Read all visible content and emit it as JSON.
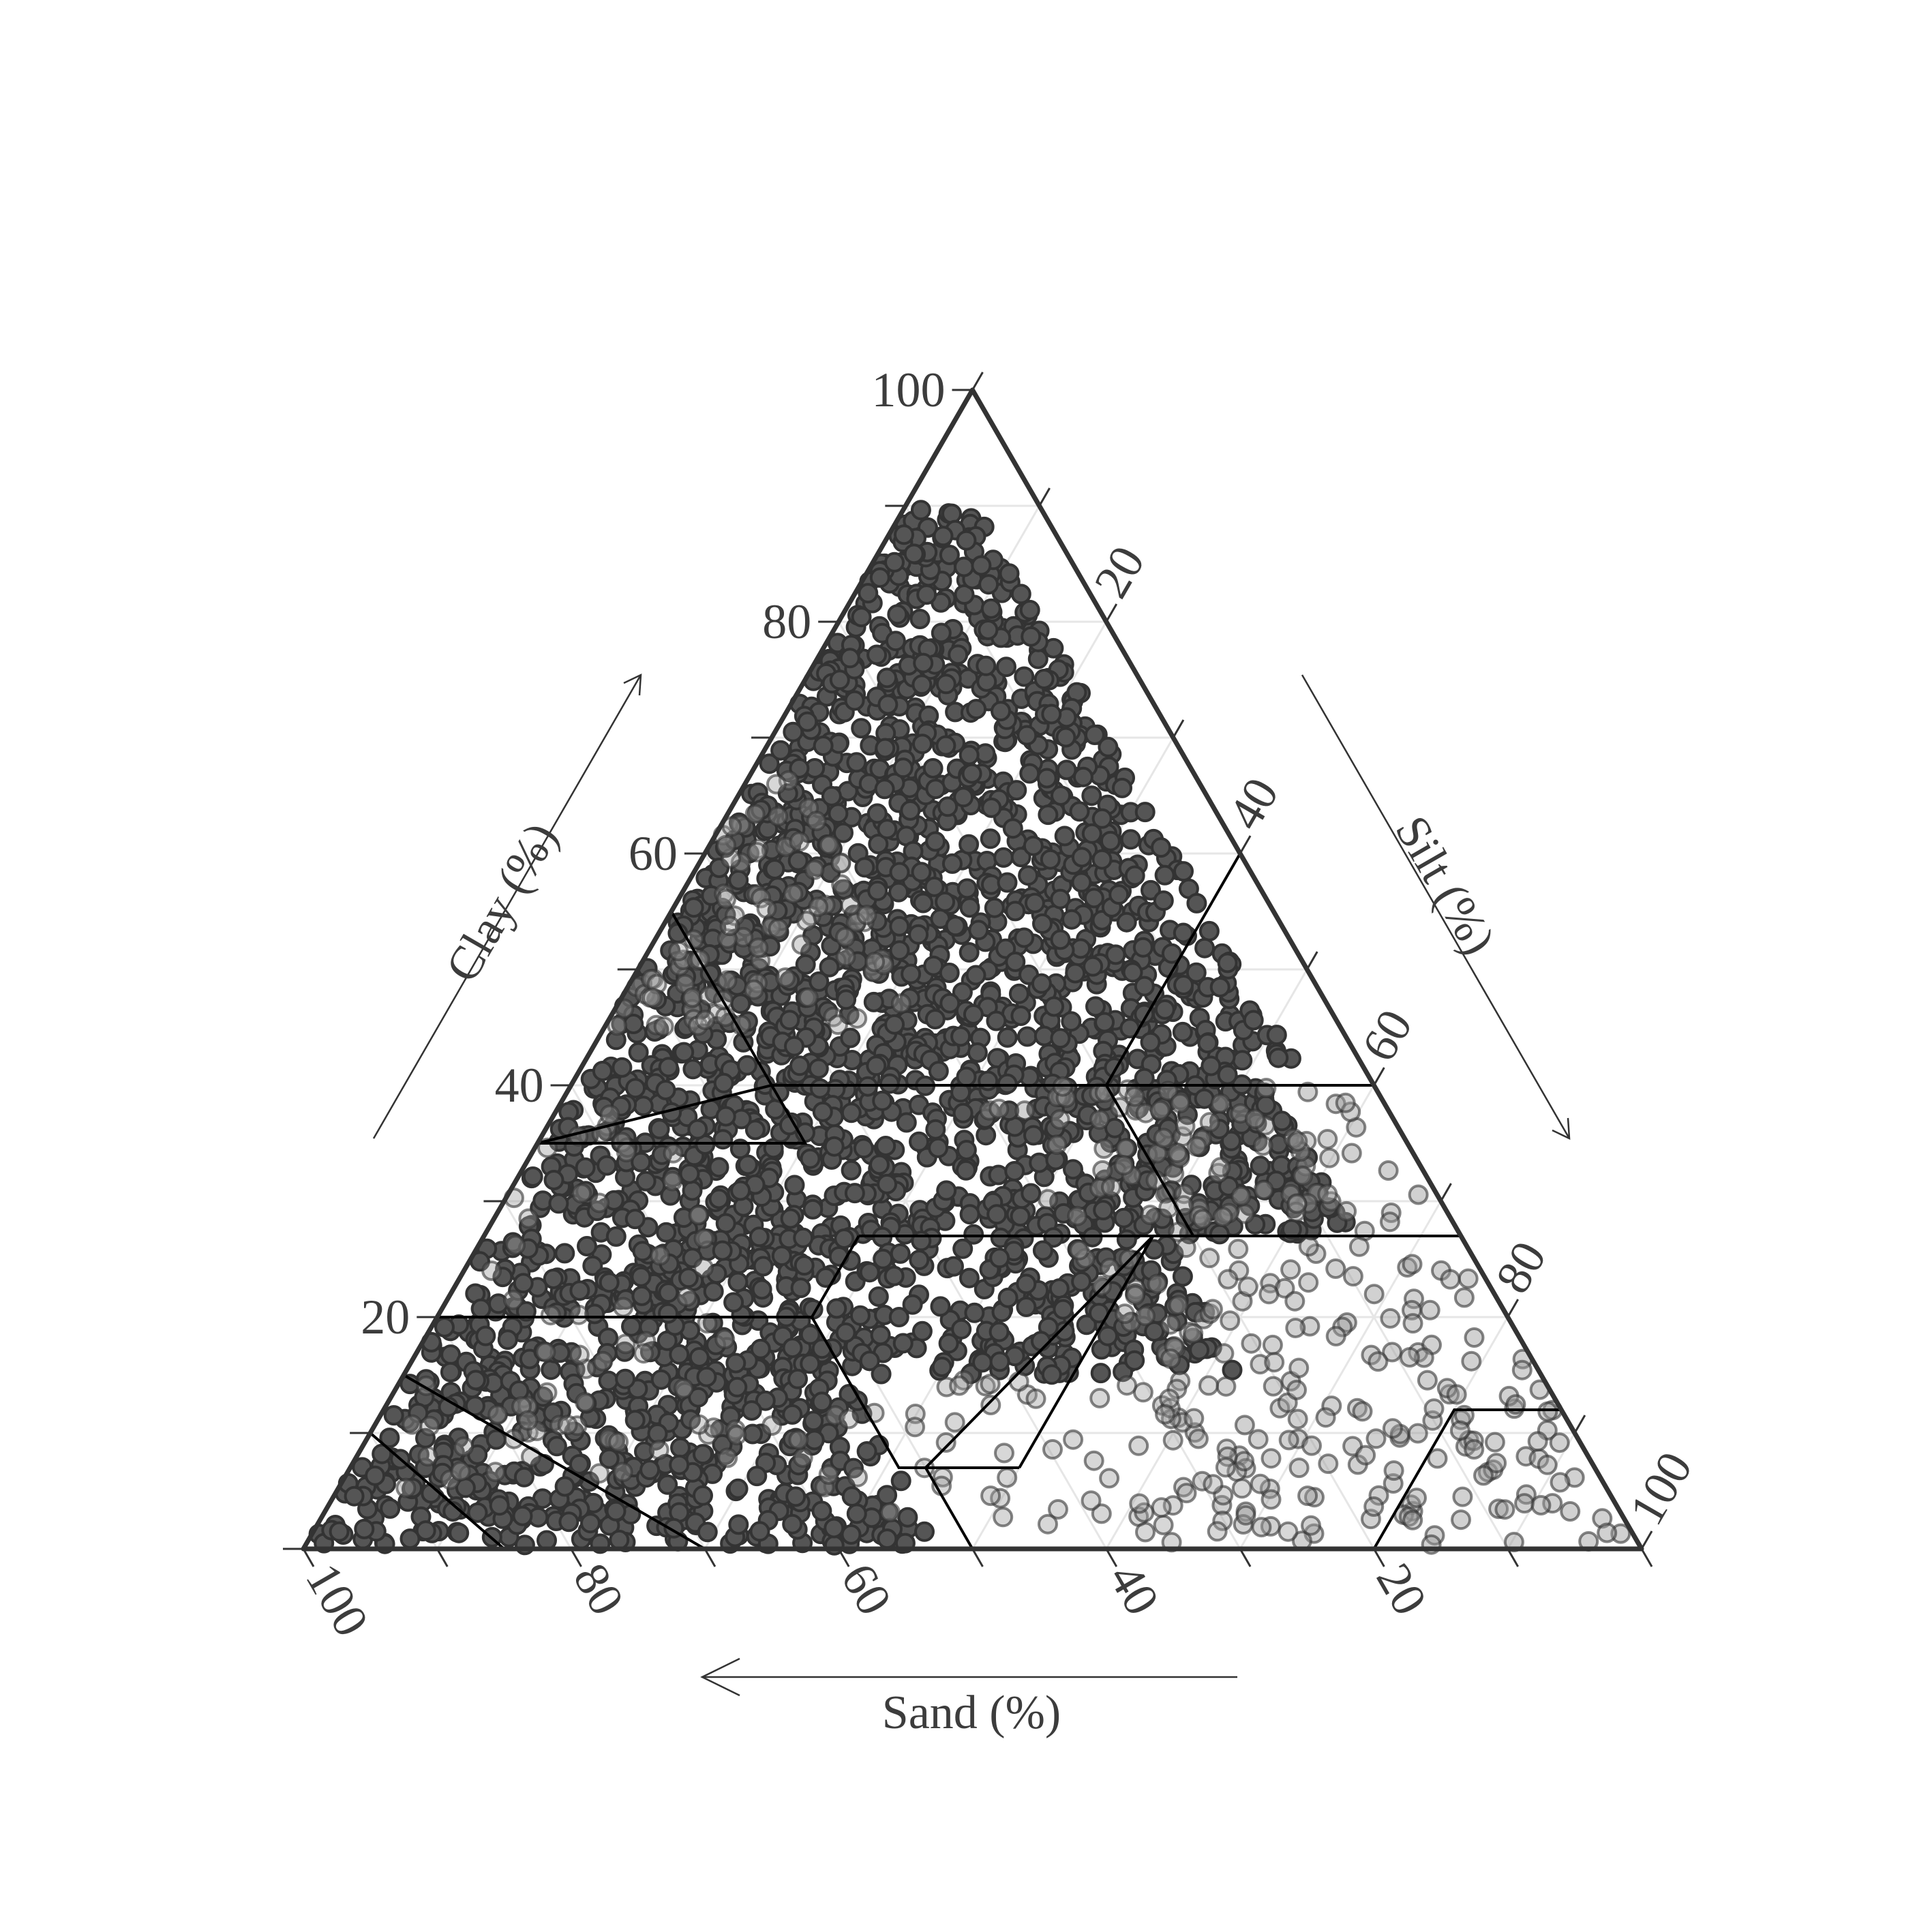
{
  "chart_data": {
    "type": "scatter",
    "subtype": "ternary",
    "title": "",
    "axes": {
      "clay": {
        "label": "Clay (%)",
        "range": [
          0,
          100
        ],
        "ticks": [
          "20",
          "40",
          "60",
          "80",
          "100"
        ]
      },
      "silt": {
        "label": "Silt (%)",
        "range": [
          0,
          100
        ],
        "ticks": [
          "20",
          "40",
          "60",
          "80",
          "100"
        ]
      },
      "sand": {
        "label": "Sand (%)",
        "range": [
          0,
          100
        ],
        "ticks": [
          "100",
          "80",
          "60",
          "40",
          "20"
        ]
      }
    },
    "grid": true,
    "gridlines": [
      10,
      20,
      30,
      40,
      50,
      60,
      70,
      80,
      90
    ],
    "legend": "none",
    "colors": {
      "point_fill": "#555555",
      "point_stroke": "#333333",
      "frame": "#333333",
      "boundary": "#000000",
      "grid": "#e6e6e6"
    },
    "texture_class_boundaries": [
      {
        "sand": [
          45,
          45,
          65,
          45
        ],
        "clay": [
          55,
          40,
          35,
          35
        ]
      },
      {
        "sand": [
          45,
          20
        ],
        "clay": [
          40,
          40
        ]
      },
      {
        "sand": [
          20,
          0
        ],
        "clay": [
          40,
          60
        ]
      },
      {
        "sand": [
          20,
          0
        ],
        "clay": [
          40,
          40
        ]
      },
      {
        "sand": [
          65,
          45,
          45
        ],
        "clay": [
          35,
          35,
          40
        ]
      },
      {
        "sand": [
          80,
          52,
          45
        ],
        "clay": [
          20,
          20,
          27
        ]
      },
      {
        "sand": [
          45,
          20,
          20
        ],
        "clay": [
          27,
          27,
          40
        ]
      },
      {
        "sand": [
          20,
          0
        ],
        "clay": [
          27,
          27
        ]
      },
      {
        "sand": [
          52,
          52,
          43
        ],
        "clay": [
          20,
          7,
          7
        ]
      },
      {
        "sand": [
          43,
          23
        ],
        "clay": [
          7,
          27
        ]
      },
      {
        "sand": [
          50,
          50,
          23
        ],
        "clay": [
          0,
          7,
          27
        ]
      },
      {
        "sand": [
          85,
          70
        ],
        "clay": [
          15,
          0
        ]
      },
      {
        "sand": [
          90,
          85
        ],
        "clay": [
          10,
          0
        ]
      },
      {
        "sand": [
          20,
          8,
          0
        ],
        "clay": [
          0,
          12,
          12
        ]
      }
    ],
    "point_groups": [
      {
        "name": "",
        "opacity": 1.0,
        "density": 1.0,
        "region": {
          "clay": [
            42,
            90
          ],
          "sand": [
            5,
            55
          ]
        },
        "count": 1180
      },
      {
        "name": "",
        "opacity": 1.0,
        "density": 1.0,
        "region": {
          "clay": [
            27,
            42
          ],
          "sand": [
            8,
            70
          ]
        },
        "count": 700
      },
      {
        "name": "",
        "opacity": 1.0,
        "density": 1.0,
        "region": {
          "clay": [
            15,
            27
          ],
          "sand": [
            22,
            82
          ]
        },
        "count": 520
      },
      {
        "name": "",
        "opacity": 1.0,
        "density": 1.0,
        "region": {
          "clay": [
            0,
            15
          ],
          "sand": [
            52,
            99
          ]
        },
        "count": 440
      },
      {
        "name": "",
        "opacity": 0.45,
        "density": 0.55,
        "region": {
          "clay": [
            0,
            40
          ],
          "sand": [
            0,
            30
          ]
        },
        "count": 520
      },
      {
        "name": "",
        "opacity": 0.4,
        "density": 0.4,
        "region": {
          "clay": [
            0,
            15
          ],
          "sand": [
            25,
            55
          ]
        },
        "count": 180
      },
      {
        "name": "",
        "opacity": 0.4,
        "density": 0.5,
        "region": {
          "clay": [
            45,
            95
          ],
          "sand": [
            30,
            70
          ]
        },
        "count": 170
      },
      {
        "name": "",
        "opacity": 0.4,
        "density": 0.5,
        "region": {
          "clay": [
            5,
            60
          ],
          "sand": [
            55,
            90
          ]
        },
        "count": 160
      }
    ]
  }
}
